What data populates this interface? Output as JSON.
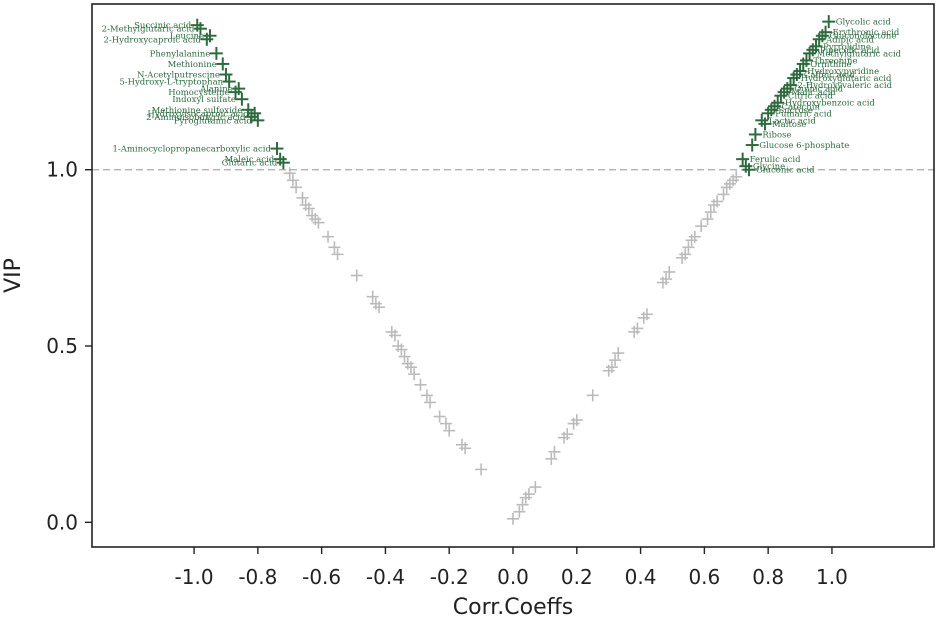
{
  "chart_data": {
    "type": "scatter",
    "title": "",
    "xlabel": "Corr.Coeffs",
    "ylabel": "VIP",
    "xlim": [
      -1.32,
      1.32
    ],
    "ylim": [
      -0.07,
      1.47
    ],
    "xticks": [
      "-1.0",
      "-0.8",
      "-0.6",
      "-0.4",
      "-0.2",
      "0.0",
      "0.2",
      "0.4",
      "0.6",
      "0.8",
      "1.0"
    ],
    "xtick_values": [
      -1.0,
      -0.8,
      -0.6,
      -0.4,
      -0.2,
      0.0,
      0.2,
      0.4,
      0.6,
      0.8,
      1.0
    ],
    "yticks": [
      "0.0",
      "0.5",
      "1.0"
    ],
    "ytick_values": [
      0.0,
      0.5,
      1.0
    ],
    "threshold": {
      "y": 1.0,
      "style": "dashed",
      "color": "#aaaaaa"
    },
    "colors": {
      "significant": "#2e6a3e",
      "nonsignificant": "#bbbbbb",
      "axis": "#222222"
    },
    "grid": false,
    "series": [
      {
        "name": "",
        "color": "#2e6a3e",
        "points": [
          {
            "x": -0.99,
            "y": 1.41,
            "label": "Succinic acid"
          },
          {
            "x": -0.98,
            "y": 1.4,
            "label": "2-Methylglutaric acid"
          },
          {
            "x": -0.96,
            "y": 1.37,
            "label": "2-Hydroxycaproic acid"
          },
          {
            "x": -0.95,
            "y": 1.38,
            "label": "Leucine"
          },
          {
            "x": -0.93,
            "y": 1.33,
            "label": "Phenylalanine"
          },
          {
            "x": -0.91,
            "y": 1.3,
            "label": "Methionine"
          },
          {
            "x": -0.9,
            "y": 1.27,
            "label": "N-Acetylputrescine"
          },
          {
            "x": -0.89,
            "y": 1.25,
            "label": "5-Hydroxy-L-tryptophan"
          },
          {
            "x": -0.87,
            "y": 1.22,
            "label": "Homocysteine"
          },
          {
            "x": -0.86,
            "y": 1.23,
            "label": "Alanine"
          },
          {
            "x": -0.85,
            "y": 1.2,
            "label": "Indoxyl sulfate"
          },
          {
            "x": -0.83,
            "y": 1.17,
            "label": "Methionine sulfoxide"
          },
          {
            "x": -0.82,
            "y": 1.15,
            "label": "2-Aminoisobutyric acid"
          },
          {
            "x": -0.81,
            "y": 1.16,
            "label": "Hydroxyisocaproic acid"
          },
          {
            "x": -0.8,
            "y": 1.14,
            "label": "Pyroglutamic acid"
          },
          {
            "x": -0.74,
            "y": 1.06,
            "label": "1-Aminocyclopropanecarboxylic acid"
          },
          {
            "x": -0.73,
            "y": 1.03,
            "label": "Maleic acid"
          },
          {
            "x": -0.72,
            "y": 1.02,
            "label": "Glutaric acid"
          },
          {
            "x": 0.72,
            "y": 1.03,
            "label": "Ferulic acid"
          },
          {
            "x": 0.73,
            "y": 1.01,
            "label": "Glycine"
          },
          {
            "x": 0.74,
            "y": 1.0,
            "label": "Gluconic acid"
          },
          {
            "x": 0.75,
            "y": 1.07,
            "label": "Glucose 6-phosphate"
          },
          {
            "x": 0.76,
            "y": 1.1,
            "label": "Ribose"
          },
          {
            "x": 0.78,
            "y": 1.14,
            "label": "Lactic acid"
          },
          {
            "x": 0.79,
            "y": 1.13,
            "label": "Maltose"
          },
          {
            "x": 0.8,
            "y": 1.16,
            "label": "Fumaric acid"
          },
          {
            "x": 0.81,
            "y": 1.17,
            "label": "Sucrose"
          },
          {
            "x": 0.82,
            "y": 1.18,
            "label": "Catechin"
          },
          {
            "x": 0.83,
            "y": 1.19,
            "label": "Hydroxybenzoic acid"
          },
          {
            "x": 0.84,
            "y": 1.21,
            "label": "Citric acid"
          },
          {
            "x": 0.85,
            "y": 1.22,
            "label": "Malic acid"
          },
          {
            "x": 0.86,
            "y": 1.23,
            "label": "Quinic acid"
          },
          {
            "x": 0.87,
            "y": 1.24,
            "label": "2-Hydroxyvaleric acid"
          },
          {
            "x": 0.88,
            "y": 1.26,
            "label": "Hydroxyglutaric acid"
          },
          {
            "x": 0.89,
            "y": 1.27,
            "label": "Caffeic acid"
          },
          {
            "x": 0.9,
            "y": 1.28,
            "label": "Hydroxypyridine"
          },
          {
            "x": 0.91,
            "y": 1.3,
            "label": "Ornithine"
          },
          {
            "x": 0.92,
            "y": 1.31,
            "label": "Threonine"
          },
          {
            "x": 0.93,
            "y": 1.33,
            "label": "Methylglutaric acid"
          },
          {
            "x": 0.94,
            "y": 1.34,
            "label": "Pipecolic acid"
          },
          {
            "x": 0.95,
            "y": 1.35,
            "label": "Pyrrolidine"
          },
          {
            "x": 0.96,
            "y": 1.37,
            "label": "Adipic acid"
          },
          {
            "x": 0.97,
            "y": 1.38,
            "label": "Gluconolactone"
          },
          {
            "x": 0.98,
            "y": 1.39,
            "label": "Erythronic acid"
          },
          {
            "x": 0.99,
            "y": 1.42,
            "label": "Glycolic acid"
          }
        ]
      },
      {
        "name": "",
        "color": "#bbbbbb",
        "points": [
          {
            "x": -0.7,
            "y": 0.99
          },
          {
            "x": -0.69,
            "y": 0.97
          },
          {
            "x": -0.68,
            "y": 0.95
          },
          {
            "x": -0.66,
            "y": 0.92
          },
          {
            "x": -0.65,
            "y": 0.9
          },
          {
            "x": -0.64,
            "y": 0.89
          },
          {
            "x": -0.63,
            "y": 0.87
          },
          {
            "x": -0.62,
            "y": 0.86
          },
          {
            "x": -0.61,
            "y": 0.85
          },
          {
            "x": -0.58,
            "y": 0.81
          },
          {
            "x": -0.56,
            "y": 0.78
          },
          {
            "x": -0.55,
            "y": 0.76
          },
          {
            "x": -0.49,
            "y": 0.7
          },
          {
            "x": -0.44,
            "y": 0.64
          },
          {
            "x": -0.43,
            "y": 0.62
          },
          {
            "x": -0.42,
            "y": 0.61
          },
          {
            "x": -0.38,
            "y": 0.54
          },
          {
            "x": -0.37,
            "y": 0.53
          },
          {
            "x": -0.36,
            "y": 0.5
          },
          {
            "x": -0.35,
            "y": 0.49
          },
          {
            "x": -0.34,
            "y": 0.47
          },
          {
            "x": -0.33,
            "y": 0.45
          },
          {
            "x": -0.32,
            "y": 0.44
          },
          {
            "x": -0.31,
            "y": 0.42
          },
          {
            "x": -0.29,
            "y": 0.39
          },
          {
            "x": -0.27,
            "y": 0.36
          },
          {
            "x": -0.26,
            "y": 0.34
          },
          {
            "x": -0.23,
            "y": 0.3
          },
          {
            "x": -0.21,
            "y": 0.28
          },
          {
            "x": -0.2,
            "y": 0.26
          },
          {
            "x": -0.16,
            "y": 0.22
          },
          {
            "x": -0.15,
            "y": 0.21
          },
          {
            "x": -0.1,
            "y": 0.15
          },
          {
            "x": 0.0,
            "y": 0.01
          },
          {
            "x": 0.02,
            "y": 0.03
          },
          {
            "x": 0.03,
            "y": 0.05
          },
          {
            "x": 0.04,
            "y": 0.07
          },
          {
            "x": 0.05,
            "y": 0.08
          },
          {
            "x": 0.07,
            "y": 0.1
          },
          {
            "x": 0.12,
            "y": 0.18
          },
          {
            "x": 0.13,
            "y": 0.2
          },
          {
            "x": 0.16,
            "y": 0.24
          },
          {
            "x": 0.17,
            "y": 0.25
          },
          {
            "x": 0.19,
            "y": 0.28
          },
          {
            "x": 0.2,
            "y": 0.29
          },
          {
            "x": 0.25,
            "y": 0.36
          },
          {
            "x": 0.3,
            "y": 0.43
          },
          {
            "x": 0.31,
            "y": 0.44
          },
          {
            "x": 0.32,
            "y": 0.46
          },
          {
            "x": 0.33,
            "y": 0.48
          },
          {
            "x": 0.38,
            "y": 0.54
          },
          {
            "x": 0.39,
            "y": 0.55
          },
          {
            "x": 0.41,
            "y": 0.58
          },
          {
            "x": 0.42,
            "y": 0.59
          },
          {
            "x": 0.47,
            "y": 0.68
          },
          {
            "x": 0.48,
            "y": 0.69
          },
          {
            "x": 0.49,
            "y": 0.71
          },
          {
            "x": 0.53,
            "y": 0.75
          },
          {
            "x": 0.54,
            "y": 0.76
          },
          {
            "x": 0.55,
            "y": 0.78
          },
          {
            "x": 0.56,
            "y": 0.8
          },
          {
            "x": 0.57,
            "y": 0.81
          },
          {
            "x": 0.59,
            "y": 0.84
          },
          {
            "x": 0.61,
            "y": 0.86
          },
          {
            "x": 0.62,
            "y": 0.88
          },
          {
            "x": 0.63,
            "y": 0.9
          },
          {
            "x": 0.64,
            "y": 0.91
          },
          {
            "x": 0.66,
            "y": 0.93
          },
          {
            "x": 0.67,
            "y": 0.95
          },
          {
            "x": 0.68,
            "y": 0.96
          },
          {
            "x": 0.69,
            "y": 0.97
          },
          {
            "x": 0.7,
            "y": 0.98
          }
        ]
      }
    ]
  }
}
